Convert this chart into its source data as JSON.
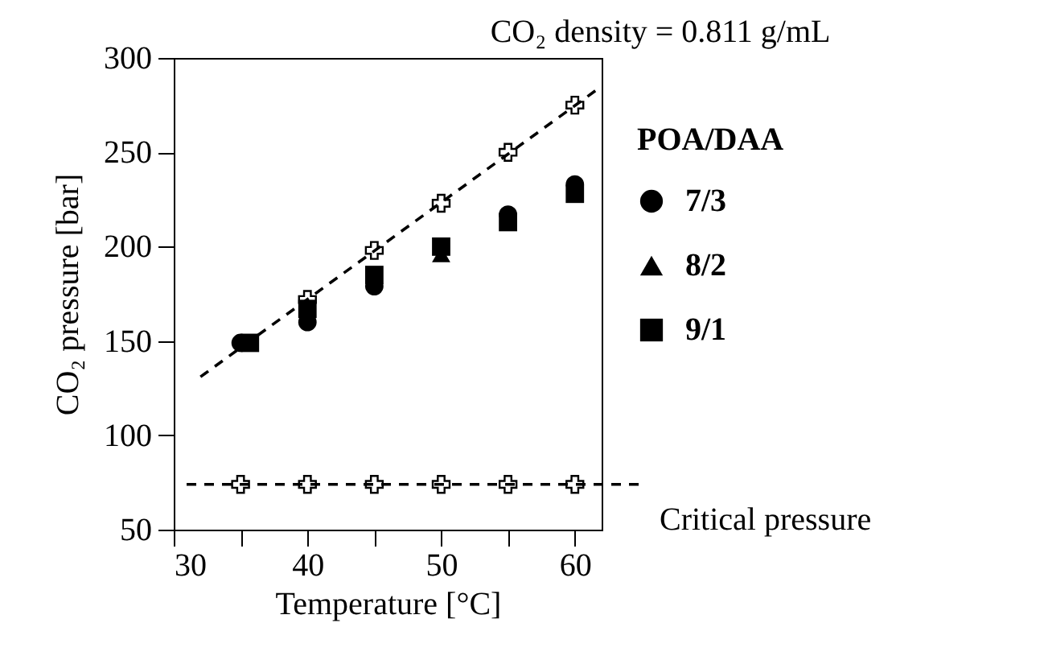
{
  "chart_data": {
    "type": "scatter",
    "xlabel": "Temperature [°C]",
    "ylabel": "CO₂ pressure [bar]",
    "legend_title": "POA/DAA",
    "annotations": [
      "CO₂ density = 0.811 g/mL"
    ],
    "x": [
      35,
      40,
      45,
      50,
      55,
      60
    ],
    "series": [
      {
        "name": "7/3",
        "marker": "circle",
        "color": "#000000",
        "values": [
          149,
          160,
          179,
          null,
          217,
          233
        ]
      },
      {
        "name": "8/2",
        "marker": "triangle",
        "color": "#000000",
        "values": [
          null,
          null,
          null,
          196,
          null,
          null
        ]
      },
      {
        "name": "9/1",
        "marker": "square",
        "color": "#000000",
        "x": [
          35.7,
          40,
          45,
          50,
          55,
          60
        ],
        "values": [
          149,
          167,
          185,
          200,
          213,
          228
        ]
      },
      {
        "marker": "cross",
        "color": "#000000",
        "values": [
          null,
          172,
          198,
          223,
          250,
          275
        ]
      },
      {
        "type": "line",
        "marker": "none",
        "line_style": "dashed",
        "color": "#000000",
        "x": [
          32,
          62
        ],
        "values": [
          131,
          285
        ]
      },
      {
        "marker": "cross",
        "color": "#000000",
        "values": [
          74,
          74,
          74,
          74,
          74,
          74
        ]
      }
    ],
    "ref_lines": [
      {
        "axis": "y",
        "value": 74,
        "label": "Critical pressure",
        "line_style": "dashed",
        "color": "#000000"
      }
    ],
    "xlim": [
      30,
      62
    ],
    "ylim": [
      50,
      300
    ],
    "xticks": [
      30,
      {
        "value": 35,
        "label": null
      },
      40,
      {
        "value": 45,
        "label": null
      },
      50,
      {
        "value": 55,
        "label": null
      },
      60
    ],
    "yticks": [
      50,
      100,
      150,
      200,
      250,
      300
    ],
    "grid": false,
    "legend": "right"
  }
}
